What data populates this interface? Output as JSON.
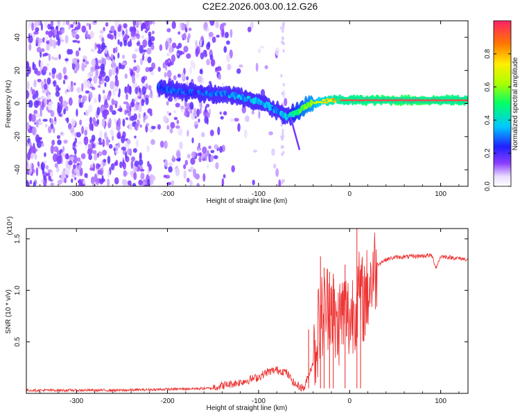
{
  "title": "C2E2.2026.003.00.12.G26",
  "chart_data": [
    {
      "type": "heatmap",
      "title": "C2E2.2026.003.00.12.G26",
      "xlabel": "Height of straight line (km)",
      "ylabel": "Frequency (Hz)",
      "xlim": [
        -355,
        130
      ],
      "ylim": [
        -50,
        50
      ],
      "xticks": [
        -300,
        -200,
        -100,
        0,
        100
      ],
      "xtick_labels": [
        "-300",
        "-200",
        "-100",
        "0",
        "100"
      ],
      "yticks": [
        -40,
        -20,
        0,
        20,
        40
      ],
      "ytick_labels": [
        "-40",
        "-20",
        "0",
        "20",
        "40"
      ],
      "colorbar": {
        "label": "Normalized spectral amplitude",
        "range": [
          0,
          1
        ],
        "ticks": [
          0.0,
          0.2,
          0.4,
          0.6,
          0.8
        ],
        "tick_labels": [
          "0.0",
          "0.2",
          "0.4",
          "0.6",
          "0.8"
        ]
      },
      "ridge": {
        "description": "signal frequency track",
        "x": [
          -210,
          -200,
          -170,
          -150,
          -130,
          -110,
          -95,
          -80,
          -70,
          -60,
          -50,
          -40,
          -30,
          -20,
          0,
          20,
          50,
          80,
          100,
          130
        ],
        "freq": [
          10,
          8,
          7,
          6,
          5,
          3,
          0,
          -4,
          -8,
          -6,
          -2,
          0,
          1,
          2,
          2,
          2,
          2,
          2,
          2,
          2
        ],
        "amplitude": [
          0.25,
          0.3,
          0.25,
          0.28,
          0.3,
          0.35,
          0.35,
          0.3,
          0.35,
          0.45,
          0.55,
          0.6,
          0.7,
          0.8,
          0.85,
          0.9,
          0.95,
          0.95,
          0.9,
          0.85
        ]
      }
    },
    {
      "type": "line",
      "xlabel": "Height of straight line (km)",
      "ylabel": "SNR (10 * v/v)",
      "scale_label": "(x10⁴)",
      "xlim": [
        -355,
        130
      ],
      "ylim": [
        0,
        1.6
      ],
      "xticks": [
        -300,
        -200,
        -100,
        0,
        100
      ],
      "xtick_labels": [
        "-300",
        "-200",
        "-100",
        "0",
        "100"
      ],
      "yticks": [
        0.5,
        1.0,
        1.5
      ],
      "ytick_labels": [
        "0.5",
        "1.0",
        "1.5"
      ],
      "series": [
        {
          "name": "SNR",
          "color": "#ee3333",
          "x": [
            -355,
            -300,
            -250,
            -200,
            -150,
            -120,
            -100,
            -90,
            -80,
            -70,
            -60,
            -50,
            -40,
            -35,
            -30,
            -25,
            -20,
            -15,
            -10,
            -5,
            0,
            5,
            10,
            15,
            20,
            25,
            30,
            40,
            50,
            70,
            90,
            95,
            100,
            110,
            130
          ],
          "y": [
            0.03,
            0.03,
            0.03,
            0.04,
            0.05,
            0.1,
            0.15,
            0.2,
            0.22,
            0.2,
            0.08,
            0.04,
            0.3,
            0.6,
            0.75,
            0.85,
            0.9,
            0.6,
            0.75,
            0.8,
            0.7,
            0.85,
            0.95,
            0.9,
            1.0,
            1.15,
            1.25,
            1.3,
            1.32,
            1.33,
            1.34,
            1.22,
            1.33,
            1.32,
            1.3
          ],
          "spikes": [
            {
              "x": -45,
              "y": 0.62
            },
            {
              "x": -32,
              "y": 1.33
            },
            {
              "x": -28,
              "y": 1.22
            },
            {
              "x": -22,
              "y": 1.18
            },
            {
              "x": -18,
              "y": 1.16
            },
            {
              "x": -5,
              "y": 1.25
            },
            {
              "x": 8,
              "y": 1.62
            },
            {
              "x": 12,
              "y": 1.2
            }
          ]
        }
      ]
    }
  ]
}
